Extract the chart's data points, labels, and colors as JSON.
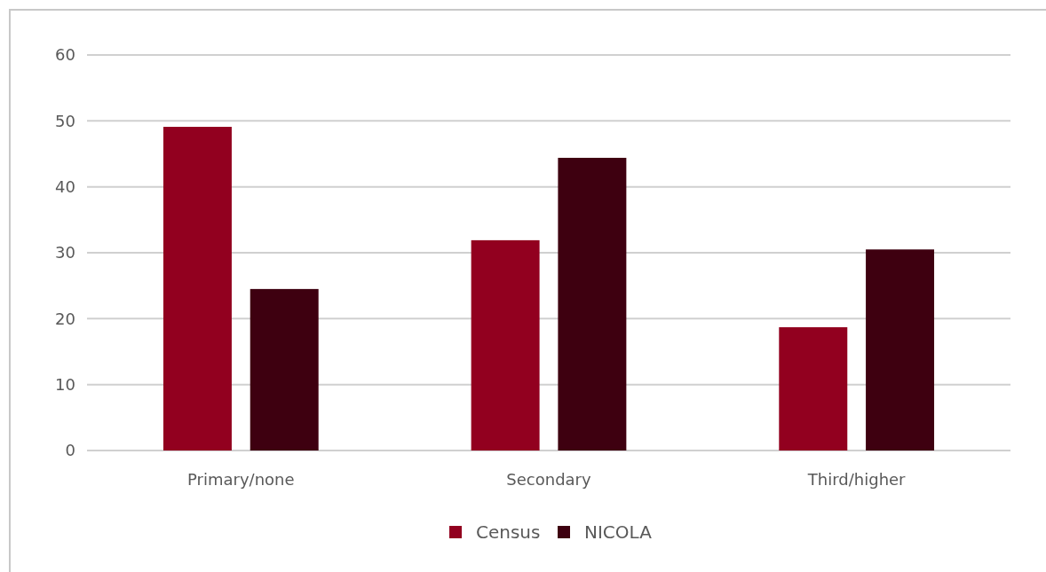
{
  "chart_data": {
    "type": "bar",
    "categories": [
      "Primary/none",
      "Secondary",
      "Third/higher"
    ],
    "series": [
      {
        "name": "Census",
        "color": "#92001f",
        "values": [
          49.1,
          31.9,
          18.7
        ]
      },
      {
        "name": "NICOLA",
        "color": "#3e0010",
        "values": [
          24.5,
          44.4,
          30.5
        ]
      }
    ],
    "ylim": [
      0,
      60
    ],
    "yticks": [
      0,
      10,
      20,
      30,
      40,
      50,
      60
    ],
    "grid": "y",
    "legend": "bottom"
  }
}
